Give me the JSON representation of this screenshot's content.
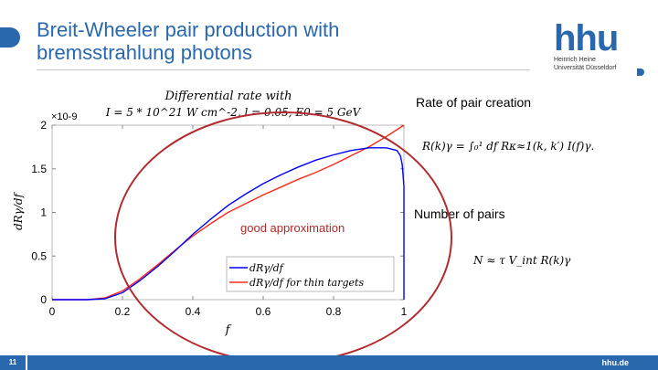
{
  "slide": {
    "title_line1": "Breit-Wheeler pair production with",
    "title_line2": "bremsstrahlung photons",
    "page_number": "11",
    "footer_site": "hhu.de",
    "accent_color": "#2a68ae",
    "logo": {
      "text": "hhu",
      "line1": "Heinrich Heine",
      "line2": "Universität Düsseldorf"
    }
  },
  "right_panel": {
    "rate_heading": "Rate of pair creation",
    "rate_formula": "R(k)γ = ∫₀¹ df Rκ≈1(k, k′) I(f)γ.",
    "pairs_heading": "Number of pairs",
    "pairs_formula": "N ≈ τ V_int R(k)γ"
  },
  "annotation": {
    "text": "good approximation",
    "color": "#b22a2e"
  },
  "chart_data": {
    "type": "line",
    "title_line1": "Differential rate with",
    "title_line2": "I = 5 * 10^21 W cm^-2,  l = 0.05,  E0 = 5 GeV",
    "xlabel": "f",
    "ylabel": "dRγ/df",
    "y_exponent": "×10-9",
    "xlim": [
      0,
      1
    ],
    "ylim": [
      0,
      2
    ],
    "xticks": [
      "0",
      "0.2",
      "0.4",
      "0.6",
      "0.8",
      "1"
    ],
    "yticks": [
      "0",
      "0.5",
      "1",
      "1.5",
      "2"
    ],
    "legend_position": "bottom-right",
    "series": [
      {
        "name": "dRγ/df",
        "color": "#0000ff",
        "x": [
          0,
          0.1,
          0.15,
          0.2,
          0.25,
          0.3,
          0.35,
          0.4,
          0.45,
          0.5,
          0.55,
          0.6,
          0.65,
          0.7,
          0.75,
          0.8,
          0.85,
          0.9,
          0.95,
          0.98,
          0.99,
          0.995,
          1.0,
          1.0
        ],
        "y": [
          0,
          0,
          0.01,
          0.08,
          0.22,
          0.38,
          0.56,
          0.75,
          0.92,
          1.08,
          1.21,
          1.33,
          1.43,
          1.52,
          1.6,
          1.66,
          1.71,
          1.74,
          1.74,
          1.71,
          1.65,
          1.55,
          1.3,
          0
        ]
      },
      {
        "name": "dRγ/df for thin targets",
        "color": "#ff2a1a",
        "x": [
          0,
          0.1,
          0.15,
          0.2,
          0.25,
          0.3,
          0.35,
          0.4,
          0.45,
          0.5,
          0.55,
          0.6,
          0.65,
          0.7,
          0.75,
          0.8,
          0.85,
          0.9,
          0.95,
          1.0
        ],
        "y": [
          0,
          0,
          0.02,
          0.1,
          0.24,
          0.4,
          0.57,
          0.73,
          0.87,
          1.0,
          1.1,
          1.2,
          1.29,
          1.38,
          1.46,
          1.55,
          1.65,
          1.75,
          1.87,
          2.0
        ]
      }
    ]
  }
}
